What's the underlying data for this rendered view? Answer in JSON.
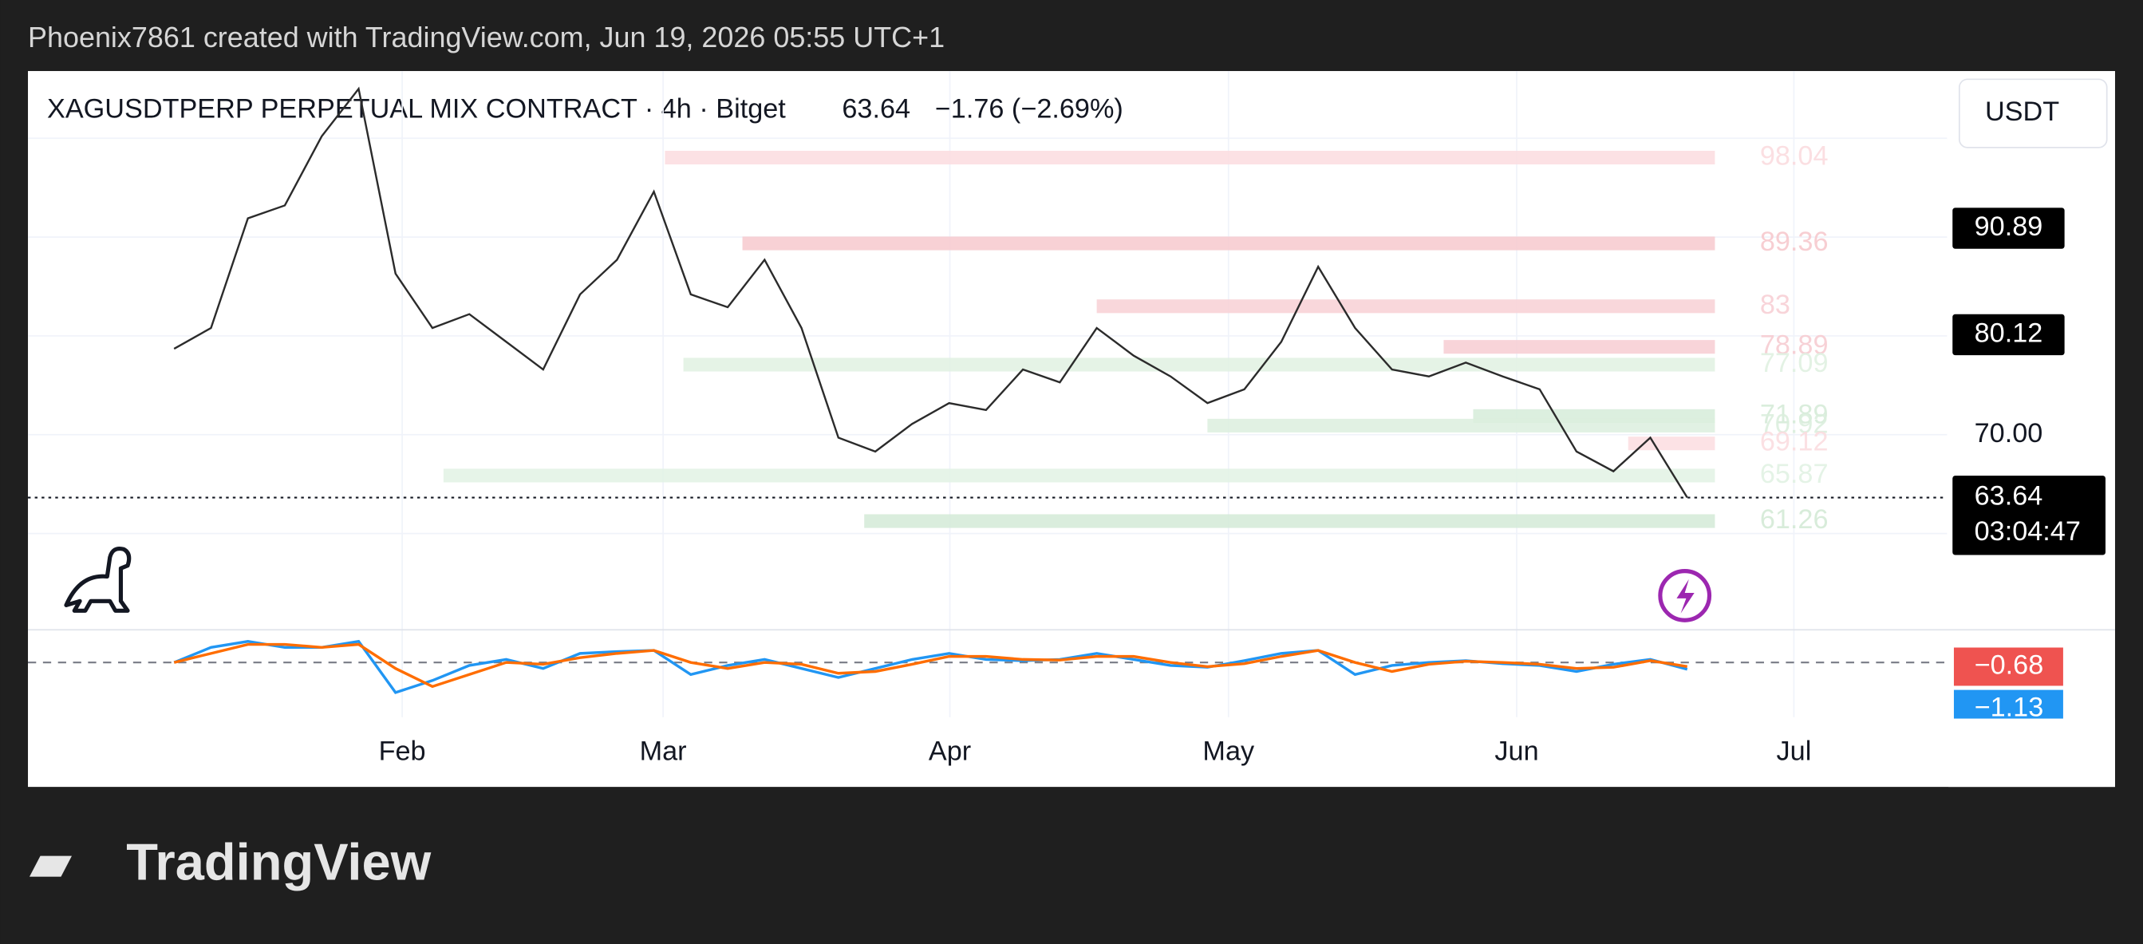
{
  "header": "Phoenix7861 created with TradingView.com, Jun 19, 2026 05:55 UTC+1",
  "footer_logo": "TradingView",
  "chart_data": {
    "type": "line",
    "symbol": "XAGUSDTPERP PERPETUAL MIX CONTRACT · 4h · Bitget",
    "last_price": 63.64,
    "change": "−1.76 (−2.69%)",
    "currency": "USDT",
    "countdown": "03:04:47",
    "color": "#2b2b2b",
    "values": [
      78.7,
      80.8,
      91.9,
      93.2,
      100.2,
      105,
      86.3,
      80.8,
      82.2,
      79.4,
      76.6,
      84.2,
      87.7,
      94.6,
      84.2,
      82.9,
      87.7,
      80.8,
      69.7,
      68.3,
      71.1,
      73.2,
      72.5,
      76.6,
      75.3,
      80.8,
      78.0,
      75.9,
      73.2,
      74.6,
      79.4,
      87.0,
      80.8,
      76.6,
      75.9,
      77.3,
      75.9,
      74.6,
      68.3,
      66.3,
      69.7,
      63.64
    ],
    "xlim": [
      -3.96,
      48.04
    ],
    "xticks": [
      {
        "value": 6.18,
        "label": "Feb"
      },
      {
        "value": 13.25,
        "label": "Mar"
      },
      {
        "value": 21.02,
        "label": "Apr"
      },
      {
        "value": 28.57,
        "label": "May"
      },
      {
        "value": 36.38,
        "label": "Jun"
      },
      {
        "value": 43.89,
        "label": "Jul"
      }
    ],
    "ylim": [
      50.4,
      106.8
    ],
    "yticks": [
      {
        "value": 70,
        "label": "70.00"
      }
    ],
    "ygrid": [
      60,
      70,
      80,
      90,
      100
    ],
    "price_tags": [
      90.89,
      80.12
    ],
    "zone_end": 41.75,
    "zones": [
      {
        "value": 98.04,
        "start": 13.3,
        "color": "#fbdcdf"
      },
      {
        "value": 89.36,
        "start": 15.4,
        "color": "#f7c9ce"
      },
      {
        "value": 83,
        "start": 25,
        "color": "#f8d0d5"
      },
      {
        "value": 78.89,
        "start": 34.4,
        "color": "#f7cdd2"
      },
      {
        "value": 77.09,
        "start": 13.8,
        "color": "#e0f1e2"
      },
      {
        "value": 71.89,
        "start": 35.2,
        "color": "#d6ecd9"
      },
      {
        "value": 70.92,
        "start": 28,
        "color": "#dcefde"
      },
      {
        "value": 69.12,
        "start": 39.4,
        "color": "#fbdde0"
      },
      {
        "value": 65.87,
        "start": 7.3,
        "color": "#e2f2e4"
      },
      {
        "value": 61.26,
        "start": 18.7,
        "color": "#d4ead7"
      }
    ],
    "macd": {
      "ylim": [
        -9.1,
        5.2
      ],
      "baseline": 0,
      "series": [
        {
          "color": "#2196f3",
          "values": [
            0,
            2.5,
            3.5,
            2.5,
            2.5,
            3.5,
            -5,
            -3,
            -0.5,
            0.5,
            -1,
            1.5,
            1.8,
            2,
            -2,
            -0.5,
            0.5,
            -1,
            -2.5,
            -1,
            0.5,
            1.5,
            0.5,
            0.3,
            0.5,
            1.5,
            0.5,
            -0.5,
            -0.8,
            0.3,
            1.5,
            2,
            -2,
            -0.5,
            0,
            0.3,
            -0.2,
            -0.5,
            -1.5,
            -0.3,
            0.5,
            -1.13
          ],
          "tag": {
            "value": -1.13,
            "label": "−1.13"
          }
        },
        {
          "color": "#ff6d00",
          "values": [
            0,
            1.5,
            3,
            3,
            2.5,
            3,
            -1,
            -4,
            -2,
            0,
            -0.3,
            0.8,
            1.5,
            2,
            0,
            -1,
            0,
            -0.3,
            -1.8,
            -1.5,
            -0.3,
            1,
            1,
            0.5,
            0.4,
            1,
            1,
            0,
            -0.7,
            -0.2,
            1,
            2,
            0,
            -1.5,
            -0.3,
            0.2,
            0,
            -0.3,
            -1,
            -0.8,
            0.3,
            -0.68
          ],
          "tag": {
            "value": -0.68,
            "label": "−0.68"
          }
        }
      ]
    }
  }
}
